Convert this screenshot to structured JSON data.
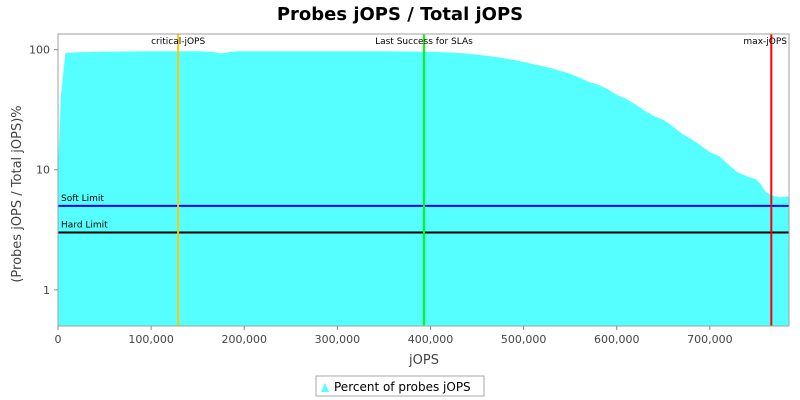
{
  "chart_data": {
    "type": "area",
    "title": "Probes jOPS / Total jOPS",
    "xlabel": "jOPS",
    "ylabel": "(Probes jOPS / Total jOPS)%",
    "y_scale": "log",
    "xlim": [
      0,
      785000
    ],
    "ylim": [
      0.5,
      135
    ],
    "x_ticks": [
      0,
      100000,
      200000,
      300000,
      400000,
      500000,
      600000,
      700000
    ],
    "x_tick_labels": [
      "0",
      "100,000",
      "200,000",
      "300,000",
      "400,000",
      "500,000",
      "600,000",
      "700,000"
    ],
    "y_ticks": [
      1,
      10,
      100
    ],
    "y_tick_labels": [
      "1",
      "10",
      "100"
    ],
    "grid": false,
    "legend_position": "bottom",
    "series": [
      {
        "name": "Percent of probes jOPS",
        "color": "#55ffff",
        "x": [
          0,
          3000,
          8000,
          20000,
          50000,
          100000,
          150000,
          165000,
          175000,
          180000,
          185000,
          195000,
          200000,
          250000,
          300000,
          350000,
          400000,
          430000,
          450000,
          470000,
          490000,
          510000,
          530000,
          550000,
          570000,
          580000,
          590000,
          600000,
          610000,
          620000,
          630000,
          640000,
          650000,
          660000,
          670000,
          680000,
          690000,
          700000,
          710000,
          715000,
          720000,
          730000,
          740000,
          750000,
          755000,
          760000,
          770000,
          775000,
          785000
        ],
        "y": [
          10,
          40,
          94,
          95,
          96,
          97,
          97,
          96,
          93,
          94,
          96,
          97,
          97,
          97,
          97,
          97,
          96,
          94,
          91,
          87,
          82,
          76,
          70,
          63,
          54,
          51,
          47,
          42,
          39,
          35,
          31,
          28,
          26,
          23,
          20,
          18,
          16,
          14,
          13,
          12,
          11,
          9.5,
          8.8,
          8.3,
          7.5,
          6.5,
          6.0,
          5.9,
          6.0
        ]
      }
    ],
    "markers": [
      {
        "label": "critical-jOPS",
        "x": 129000,
        "color": "#ffc800"
      },
      {
        "label": "Last Success for SLAs",
        "x": 393000,
        "color": "#00ff00"
      },
      {
        "label": "max-jOPS",
        "x": 766000,
        "color": "#ff0000"
      }
    ],
    "limits": [
      {
        "label": "Soft Limit",
        "y": 5,
        "color": "#0000ff"
      },
      {
        "label": "Hard Limit",
        "y": 3,
        "color": "#000000"
      }
    ]
  }
}
